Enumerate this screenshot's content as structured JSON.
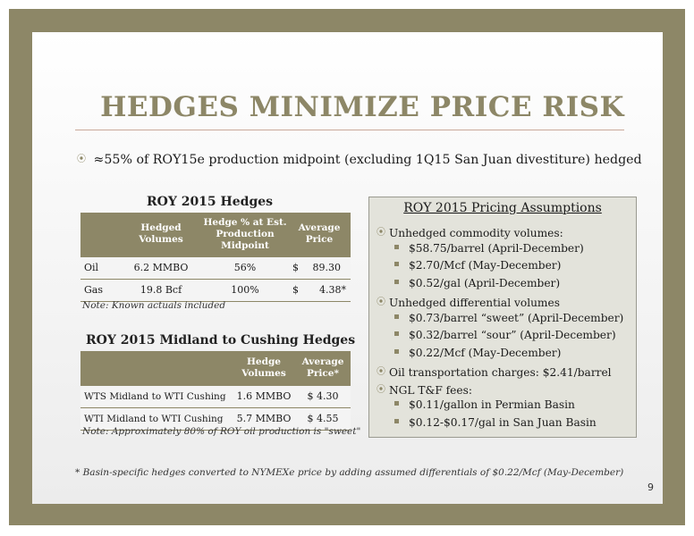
{
  "title": "HEDGES MINIMIZE PRICE RISK",
  "main_bullet": "≈55% of ROY15e production midpoint (excluding 1Q15 San Juan divestiture) hedged",
  "hedges": {
    "heading": "ROY 2015 Hedges",
    "columns": [
      "",
      "Hedged Volumes",
      "Hedge % at Est. Production Midpoint",
      "Average Price"
    ],
    "rows": [
      {
        "product": "Oil",
        "volume": "6.2  MMBO",
        "pct": "56%",
        "currency": "$",
        "price": "89.30"
      },
      {
        "product": "Gas",
        "volume": "19.8 Bcf",
        "pct": "100%",
        "currency": "$",
        "price": "4.38*"
      }
    ],
    "note": "Note: Known actuals included"
  },
  "midland": {
    "heading": "ROY 2015 Midland to Cushing Hedges",
    "columns": [
      "",
      "Hedge Volumes",
      "Average Price*"
    ],
    "rows": [
      {
        "label": "WTS Midland to WTI Cushing",
        "volume": "1.6 MMBO",
        "price": "$ 4.30"
      },
      {
        "label": "WTI Midland to WTI Cushing",
        "volume": "5.7 MMBO",
        "price": "$ 4.55"
      }
    ],
    "note": "Note: Approximately 80% of ROY oil production is \"sweet\""
  },
  "pricing": {
    "heading": "ROY 2015 Pricing Assumptions",
    "items": [
      {
        "level": 1,
        "text": "Unhedged commodity volumes:"
      },
      {
        "level": 2,
        "text": "$58.75/barrel (April-December)"
      },
      {
        "level": 2,
        "text": "$2.70/Mcf (May-December)"
      },
      {
        "level": 2,
        "text": "$0.52/gal (April-December)"
      },
      {
        "level": 1,
        "text": "Unhedged differential volumes"
      },
      {
        "level": 2,
        "text": "$0.73/barrel “sweet” (April-December)"
      },
      {
        "level": 2,
        "text": "$0.32/barrel “sour” (April-December)"
      },
      {
        "level": 2,
        "text": "$0.22/Mcf (May-December)"
      },
      {
        "level": 1,
        "text": "Oil transportation charges: $2.41/barrel"
      },
      {
        "level": 1,
        "text": "NGL T&F fees:"
      },
      {
        "level": 2,
        "text": "$0.11/gallon in Permian Basin"
      },
      {
        "level": 2,
        "text": "$0.12-$0.17/gal in San Juan Basin"
      }
    ]
  },
  "footnote": "*  Basin-specific hedges converted to NYMEXe price by adding assumed differentials of $0.22/Mcf (May-December)",
  "page_number": "9",
  "colors": {
    "accent": "#8d8767",
    "frame": "#8d8767"
  },
  "icons": {
    "main_bullet": "circle-dot-icon",
    "level1_bullet": "circle-dot-icon",
    "level2_bullet": "square-bullet-icon"
  }
}
